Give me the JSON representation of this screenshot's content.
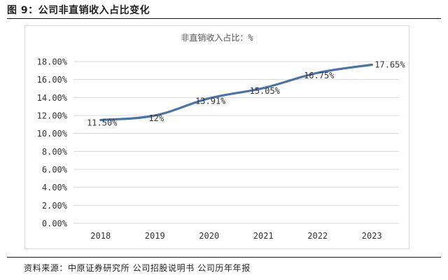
{
  "figure_title": "图 9：公司非直销收入占比变化",
  "source_note": "资料来源：中原证券研究所 公司招股说明书 公司历年年报",
  "chart_data": {
    "type": "line",
    "title": "非直销收入占比：%",
    "categories": [
      "2018",
      "2019",
      "2020",
      "2021",
      "2022",
      "2023"
    ],
    "series": [
      {
        "values": [
          11.5,
          12.0,
          13.91,
          15.05,
          16.75,
          17.65
        ]
      }
    ],
    "data_labels": [
      "11.50%",
      "12%",
      "13.91%",
      "15.05%",
      "16.75%",
      "17.65%"
    ],
    "ylim": [
      0,
      18
    ],
    "yticks": [
      0,
      2,
      4,
      6,
      8,
      10,
      12,
      14,
      16,
      18
    ],
    "ytick_labels": [
      "0.00%",
      "2.00%",
      "4.00%",
      "6.00%",
      "8.00%",
      "10.00%",
      "12.00%",
      "14.00%",
      "16.00%",
      "18.00%"
    ],
    "grid": true,
    "line_color": "#4a74a8"
  }
}
